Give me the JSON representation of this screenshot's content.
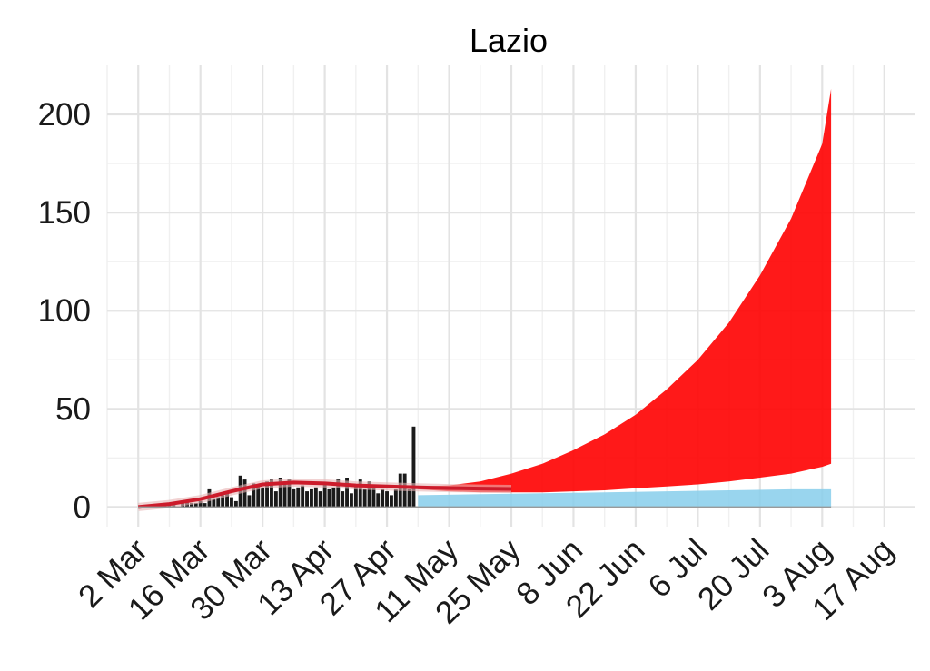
{
  "chart_data": {
    "type": "area",
    "title": "Lazio",
    "xlabel": "",
    "ylabel": "",
    "ylim": [
      -10,
      225
    ],
    "xlim": [
      "2020-02-24",
      "2020-08-24"
    ],
    "grid": true,
    "x_ticks": [
      "2020-03-02",
      "2020-03-16",
      "2020-03-30",
      "2020-04-13",
      "2020-04-27",
      "2020-05-11",
      "2020-05-25",
      "2020-06-08",
      "2020-06-22",
      "2020-07-06",
      "2020-07-20",
      "2020-08-03",
      "2020-08-17"
    ],
    "x_tick_labels": [
      "2 Mar",
      "16 Mar",
      "30 Mar",
      "13 Apr",
      "27 Apr",
      "11 May",
      "25 May",
      "8 Jun",
      "22 Jun",
      "6 Jul",
      "20 Jul",
      "3 Aug",
      "17 Aug"
    ],
    "y_ticks": [
      0,
      50,
      100,
      150,
      200
    ],
    "y_tick_labels": [
      "0",
      "50",
      "100",
      "150",
      "200"
    ],
    "colors": {
      "bars": "#1a1a1a",
      "fit_line": "#cc1b2b",
      "fit_band": "#e8b4b4",
      "projection_upper": "#ff0000",
      "projection_lower": "#87ceeb"
    },
    "series": [
      {
        "type": "bar",
        "x": [
          "2020-03-02",
          "2020-03-03",
          "2020-03-04",
          "2020-03-05",
          "2020-03-06",
          "2020-03-07",
          "2020-03-08",
          "2020-03-09",
          "2020-03-10",
          "2020-03-11",
          "2020-03-12",
          "2020-03-13",
          "2020-03-14",
          "2020-03-15",
          "2020-03-16",
          "2020-03-17",
          "2020-03-18",
          "2020-03-19",
          "2020-03-20",
          "2020-03-21",
          "2020-03-22",
          "2020-03-23",
          "2020-03-24",
          "2020-03-25",
          "2020-03-26",
          "2020-03-27",
          "2020-03-28",
          "2020-03-29",
          "2020-03-30",
          "2020-03-31",
          "2020-04-01",
          "2020-04-02",
          "2020-04-03",
          "2020-04-04",
          "2020-04-05",
          "2020-04-06",
          "2020-04-07",
          "2020-04-08",
          "2020-04-09",
          "2020-04-10",
          "2020-04-11",
          "2020-04-12",
          "2020-04-13",
          "2020-04-14",
          "2020-04-15",
          "2020-04-16",
          "2020-04-17",
          "2020-04-18",
          "2020-04-19",
          "2020-04-20",
          "2020-04-21",
          "2020-04-22",
          "2020-04-23",
          "2020-04-24",
          "2020-04-25",
          "2020-04-26",
          "2020-04-27",
          "2020-04-28",
          "2020-04-29",
          "2020-04-30",
          "2020-05-01",
          "2020-05-02",
          "2020-05-03"
        ],
        "values": [
          0,
          0,
          1,
          0,
          1,
          0,
          1,
          2,
          1,
          0,
          2,
          3,
          2,
          2,
          3,
          2,
          9,
          4,
          5,
          6,
          7,
          5,
          3,
          16,
          14,
          6,
          12,
          11,
          10,
          13,
          14,
          8,
          15,
          12,
          14,
          9,
          10,
          11,
          8,
          9,
          10,
          8,
          12,
          9,
          10,
          14,
          8,
          15,
          7,
          11,
          14,
          9,
          13,
          10,
          7,
          9,
          8,
          6,
          9,
          17,
          17,
          9,
          41
        ]
      },
      {
        "type": "line",
        "name": "",
        "x": [
          "2020-03-02",
          "2020-03-09",
          "2020-03-16",
          "2020-03-23",
          "2020-03-30",
          "2020-04-06",
          "2020-04-13",
          "2020-04-20",
          "2020-04-27",
          "2020-05-04",
          "2020-05-11",
          "2020-05-18",
          "2020-05-25"
        ],
        "values": [
          0,
          1.5,
          4,
          8,
          11.5,
          12.5,
          12,
          11,
          10.5,
          10,
          9.6,
          9.4,
          9.2
        ]
      },
      {
        "type": "band",
        "x": [
          "2020-05-04",
          "2020-05-11",
          "2020-05-18",
          "2020-05-25",
          "2020-06-01",
          "2020-06-08",
          "2020-06-15",
          "2020-06-22",
          "2020-06-29",
          "2020-07-06",
          "2020-07-13",
          "2020-07-20",
          "2020-07-27",
          "2020-08-03",
          "2020-08-05"
        ],
        "lower": [
          9,
          8,
          7.5,
          7.5,
          7.5,
          8,
          8.5,
          9.5,
          10.5,
          11.5,
          13,
          15,
          17,
          20.5,
          22
        ],
        "upper": [
          10.5,
          11,
          13,
          17,
          22,
          29,
          37,
          47,
          60,
          75,
          94,
          118,
          147,
          185,
          213
        ]
      },
      {
        "type": "band",
        "x": [
          "2020-05-04",
          "2020-05-18",
          "2020-06-01",
          "2020-06-15",
          "2020-06-29",
          "2020-07-13",
          "2020-07-27",
          "2020-08-05"
        ],
        "lower": [
          0,
          0,
          0,
          0,
          0,
          0,
          0,
          0
        ],
        "upper": [
          6,
          6.5,
          7,
          7.5,
          8,
          8.5,
          9,
          9
        ]
      }
    ]
  }
}
